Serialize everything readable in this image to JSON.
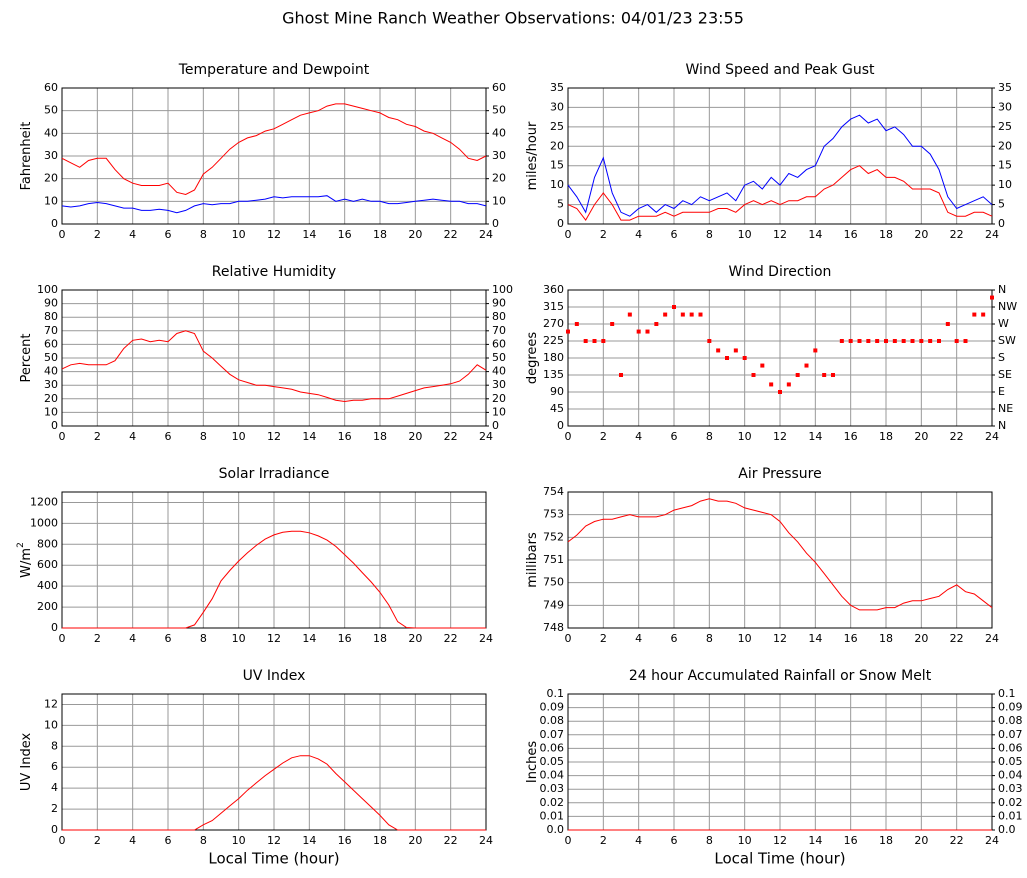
{
  "title": "Ghost Mine Ranch Weather Observations: 04/01/23 23:55",
  "chart_data": [
    {
      "type": "line",
      "title": "Temperature and Dewpoint",
      "ylabel": "Fahrenheit",
      "x": [
        0,
        0.5,
        1,
        1.5,
        2,
        2.5,
        3,
        3.5,
        4,
        4.5,
        5,
        5.5,
        6,
        6.5,
        7,
        7.5,
        8,
        8.5,
        9,
        9.5,
        10,
        10.5,
        11,
        11.5,
        12,
        12.5,
        13,
        13.5,
        14,
        14.5,
        15,
        15.5,
        16,
        16.5,
        17,
        17.5,
        18,
        18.5,
        19,
        19.5,
        20,
        20.5,
        21,
        21.5,
        22,
        22.5,
        23,
        23.5,
        24
      ],
      "series": [
        {
          "color": "#ff0000",
          "values": [
            29,
            27,
            25,
            28,
            29,
            29,
            24,
            20,
            18,
            17,
            17,
            17,
            18,
            14,
            13,
            15,
            22,
            25,
            29,
            33,
            36,
            38,
            39,
            41,
            42,
            44,
            46,
            48,
            49,
            50,
            52,
            53,
            53,
            52,
            51,
            50,
            49,
            47,
            46,
            44,
            43,
            41,
            40,
            38,
            36,
            33,
            29,
            28,
            30
          ]
        },
        {
          "color": "#0000ff",
          "values": [
            8,
            7.5,
            8,
            9,
            9.5,
            9,
            8,
            7,
            7,
            6,
            6,
            6.5,
            6,
            5,
            6,
            8,
            9,
            8.5,
            9,
            9,
            10,
            10,
            10.5,
            11,
            12,
            11.5,
            12,
            12,
            12,
            12,
            12.5,
            10,
            11,
            10,
            11,
            10,
            10,
            9,
            9,
            9.5,
            10,
            10.5,
            11,
            10.5,
            10,
            10,
            9,
            9,
            8
          ]
        }
      ],
      "xlim": [
        0,
        24
      ],
      "xticks": [
        0,
        2,
        4,
        6,
        8,
        10,
        12,
        14,
        16,
        18,
        20,
        22,
        24
      ],
      "ylim": [
        0,
        60
      ],
      "yticks": [
        0,
        10,
        20,
        30,
        40,
        50,
        60
      ],
      "y2ticks": [
        0,
        10,
        20,
        30,
        40,
        50,
        60
      ],
      "grid": true
    },
    {
      "type": "line",
      "title": "Wind Speed and Peak Gust",
      "ylabel": "miles/hour",
      "x": [
        0,
        0.5,
        1,
        1.5,
        2,
        2.5,
        3,
        3.5,
        4,
        4.5,
        5,
        5.5,
        6,
        6.5,
        7,
        7.5,
        8,
        8.5,
        9,
        9.5,
        10,
        10.5,
        11,
        11.5,
        12,
        12.5,
        13,
        13.5,
        14,
        14.5,
        15,
        15.5,
        16,
        16.5,
        17,
        17.5,
        18,
        18.5,
        19,
        19.5,
        20,
        20.5,
        21,
        21.5,
        22,
        22.5,
        23,
        23.5,
        24
      ],
      "series": [
        {
          "color": "#0000ff",
          "values": [
            10,
            7,
            3,
            12,
            17,
            8,
            3,
            2,
            4,
            5,
            3,
            5,
            4,
            6,
            5,
            7,
            6,
            7,
            8,
            6,
            10,
            11,
            9,
            12,
            10,
            13,
            12,
            14,
            15,
            20,
            22,
            25,
            27,
            28,
            26,
            27,
            24,
            25,
            23,
            20,
            20,
            18,
            14,
            7,
            4,
            5,
            6,
            7,
            5
          ]
        },
        {
          "color": "#ff0000",
          "values": [
            5,
            4,
            1,
            5,
            8,
            5,
            1,
            1,
            2,
            2,
            2,
            3,
            2,
            3,
            3,
            3,
            3,
            4,
            4,
            3,
            5,
            6,
            5,
            6,
            5,
            6,
            6,
            7,
            7,
            9,
            10,
            12,
            14,
            15,
            13,
            14,
            12,
            12,
            11,
            9,
            9,
            9,
            8,
            3,
            2,
            2,
            3,
            3,
            2
          ]
        }
      ],
      "xlim": [
        0,
        24
      ],
      "xticks": [
        0,
        2,
        4,
        6,
        8,
        10,
        12,
        14,
        16,
        18,
        20,
        22,
        24
      ],
      "ylim": [
        0,
        35
      ],
      "yticks": [
        0,
        5,
        10,
        15,
        20,
        25,
        30,
        35
      ],
      "y2ticks": [
        0,
        5,
        10,
        15,
        20,
        25,
        30,
        35
      ],
      "grid": true
    },
    {
      "type": "line",
      "title": "Relative Humidity",
      "ylabel": "Percent",
      "x": [
        0,
        0.5,
        1,
        1.5,
        2,
        2.5,
        3,
        3.5,
        4,
        4.5,
        5,
        5.5,
        6,
        6.5,
        7,
        7.5,
        8,
        8.5,
        9,
        9.5,
        10,
        10.5,
        11,
        11.5,
        12,
        12.5,
        13,
        13.5,
        14,
        14.5,
        15,
        15.5,
        16,
        16.5,
        17,
        17.5,
        18,
        18.5,
        19,
        19.5,
        20,
        20.5,
        21,
        21.5,
        22,
        22.5,
        23,
        23.5,
        24
      ],
      "series": [
        {
          "color": "#ff0000",
          "values": [
            42,
            45,
            46,
            45,
            45,
            45,
            48,
            57,
            63,
            64,
            62,
            63,
            62,
            68,
            70,
            68,
            55,
            50,
            44,
            38,
            34,
            32,
            30,
            30,
            29,
            28,
            27,
            25,
            24,
            23,
            21,
            19,
            18,
            19,
            19,
            20,
            20,
            20,
            22,
            24,
            26,
            28,
            29,
            30,
            31,
            33,
            38,
            45,
            41
          ]
        }
      ],
      "xlim": [
        0,
        24
      ],
      "xticks": [
        0,
        2,
        4,
        6,
        8,
        10,
        12,
        14,
        16,
        18,
        20,
        22,
        24
      ],
      "ylim": [
        0,
        100
      ],
      "yticks": [
        0,
        10,
        20,
        30,
        40,
        50,
        60,
        70,
        80,
        90,
        100
      ],
      "y2ticks": [
        0,
        10,
        20,
        30,
        40,
        50,
        60,
        70,
        80,
        90,
        100
      ],
      "grid": true
    },
    {
      "type": "scatter",
      "title": "Wind Direction",
      "ylabel": "degrees",
      "x": [
        0,
        0.5,
        1,
        1.5,
        2,
        2.5,
        3,
        3.5,
        4,
        4.5,
        5,
        5.5,
        6,
        6.5,
        7,
        7.5,
        8,
        8.5,
        9,
        9.5,
        10,
        10.5,
        11,
        11.5,
        12,
        12.5,
        13,
        13.5,
        14,
        14.5,
        15,
        15.5,
        16,
        16.5,
        17,
        17.5,
        18,
        18.5,
        19,
        19.5,
        20,
        20.5,
        21,
        21.5,
        22,
        22.5,
        23,
        23.5,
        24
      ],
      "series": [
        {
          "color": "#ff0000",
          "values": [
            250,
            270,
            225,
            225,
            225,
            270,
            135,
            295,
            250,
            250,
            270,
            295,
            315,
            295,
            295,
            295,
            225,
            200,
            180,
            200,
            180,
            135,
            160,
            110,
            90,
            110,
            135,
            160,
            200,
            135,
            135,
            225,
            225,
            225,
            225,
            225,
            225,
            225,
            225,
            225,
            225,
            225,
            225,
            270,
            225,
            225,
            295,
            295,
            340
          ]
        }
      ],
      "xlim": [
        0,
        24
      ],
      "xticks": [
        0,
        2,
        4,
        6,
        8,
        10,
        12,
        14,
        16,
        18,
        20,
        22,
        24
      ],
      "ylim": [
        0,
        360
      ],
      "yticks": [
        0,
        45,
        90,
        135,
        180,
        225,
        270,
        315,
        360
      ],
      "y2ticks": [
        {
          "value": 0,
          "label": "N"
        },
        {
          "value": 45,
          "label": "NE"
        },
        {
          "value": 90,
          "label": "E"
        },
        {
          "value": 135,
          "label": "SE"
        },
        {
          "value": 180,
          "label": "S"
        },
        {
          "value": 225,
          "label": "SW"
        },
        {
          "value": 270,
          "label": "W"
        },
        {
          "value": 315,
          "label": "NW"
        },
        {
          "value": 360,
          "label": "N"
        }
      ],
      "grid": true
    },
    {
      "type": "line",
      "title": "Solar Irradiance",
      "ylabel": "W/m",
      "ylabel_sup": "2",
      "x": [
        0,
        0.5,
        1,
        1.5,
        2,
        2.5,
        3,
        3.5,
        4,
        4.5,
        5,
        5.5,
        6,
        6.5,
        7,
        7.5,
        8,
        8.5,
        9,
        9.5,
        10,
        10.5,
        11,
        11.5,
        12,
        12.5,
        13,
        13.5,
        14,
        14.5,
        15,
        15.5,
        16,
        16.5,
        17,
        17.5,
        18,
        18.5,
        19,
        19.5,
        20,
        20.5,
        21,
        21.5,
        22,
        22.5,
        23,
        23.5,
        24
      ],
      "series": [
        {
          "color": "#ff0000",
          "values": [
            0,
            0,
            0,
            0,
            0,
            0,
            0,
            0,
            0,
            0,
            0,
            0,
            0,
            0,
            0,
            30,
            150,
            280,
            450,
            550,
            640,
            720,
            790,
            850,
            890,
            915,
            925,
            925,
            910,
            880,
            840,
            780,
            700,
            620,
            530,
            440,
            340,
            220,
            60,
            5,
            0,
            0,
            0,
            0,
            0,
            0,
            0,
            0,
            0
          ]
        }
      ],
      "xlim": [
        0,
        24
      ],
      "xticks": [
        0,
        2,
        4,
        6,
        8,
        10,
        12,
        14,
        16,
        18,
        20,
        22,
        24
      ],
      "ylim": [
        0,
        1300
      ],
      "yticks": [
        0,
        200,
        400,
        600,
        800,
        1000,
        1200
      ],
      "grid": true
    },
    {
      "type": "line",
      "title": "Air Pressure",
      "ylabel": "millibars",
      "x": [
        0,
        0.5,
        1,
        1.5,
        2,
        2.5,
        3,
        3.5,
        4,
        4.5,
        5,
        5.5,
        6,
        6.5,
        7,
        7.5,
        8,
        8.5,
        9,
        9.5,
        10,
        10.5,
        11,
        11.5,
        12,
        12.5,
        13,
        13.5,
        14,
        14.5,
        15,
        15.5,
        16,
        16.5,
        17,
        17.5,
        18,
        18.5,
        19,
        19.5,
        20,
        20.5,
        21,
        21.5,
        22,
        22.5,
        23,
        23.5,
        24
      ],
      "series": [
        {
          "color": "#ff0000",
          "values": [
            751.8,
            752.1,
            752.5,
            752.7,
            752.8,
            752.8,
            752.9,
            753.0,
            752.9,
            752.9,
            752.9,
            753.0,
            753.2,
            753.3,
            753.4,
            753.6,
            753.7,
            753.6,
            753.6,
            753.5,
            753.3,
            753.2,
            753.1,
            753.0,
            752.7,
            752.2,
            751.8,
            751.3,
            750.9,
            750.4,
            749.9,
            749.4,
            749.0,
            748.8,
            748.8,
            748.8,
            748.9,
            748.9,
            749.1,
            749.2,
            749.2,
            749.3,
            749.4,
            749.7,
            749.9,
            749.6,
            749.5,
            749.2,
            748.9
          ]
        }
      ],
      "xlim": [
        0,
        24
      ],
      "xticks": [
        0,
        2,
        4,
        6,
        8,
        10,
        12,
        14,
        16,
        18,
        20,
        22,
        24
      ],
      "ylim": [
        748,
        754
      ],
      "yticks": [
        748,
        749,
        750,
        751,
        752,
        753,
        754
      ],
      "grid": true
    },
    {
      "type": "line",
      "title": "UV Index",
      "ylabel": "UV Index",
      "xlabel": "Local Time (hour)",
      "x": [
        0,
        0.5,
        1,
        1.5,
        2,
        2.5,
        3,
        3.5,
        4,
        4.5,
        5,
        5.5,
        6,
        6.5,
        7,
        7.5,
        8,
        8.5,
        9,
        9.5,
        10,
        10.5,
        11,
        11.5,
        12,
        12.5,
        13,
        13.5,
        14,
        14.5,
        15,
        15.5,
        16,
        16.5,
        17,
        17.5,
        18,
        18.5,
        19,
        19.5,
        20,
        20.5,
        21,
        21.5,
        22,
        22.5,
        23,
        23.5,
        24
      ],
      "series": [
        {
          "color": "#ff0000",
          "values": [
            0,
            0,
            0,
            0,
            0,
            0,
            0,
            0,
            0,
            0,
            0,
            0,
            0,
            0,
            0,
            0,
            0.5,
            0.9,
            1.6,
            2.3,
            3.0,
            3.8,
            4.5,
            5.2,
            5.8,
            6.4,
            6.9,
            7.1,
            7.1,
            6.8,
            6.3,
            5.4,
            4.6,
            3.8,
            3.0,
            2.2,
            1.4,
            0.5,
            0,
            0,
            0,
            0,
            0,
            0,
            0,
            0,
            0,
            0,
            0
          ]
        }
      ],
      "xlim": [
        0,
        24
      ],
      "xticks": [
        0,
        2,
        4,
        6,
        8,
        10,
        12,
        14,
        16,
        18,
        20,
        22,
        24
      ],
      "ylim": [
        0,
        13
      ],
      "yticks": [
        0,
        2,
        4,
        6,
        8,
        10,
        12
      ],
      "grid": true
    },
    {
      "type": "line",
      "title": "24 hour Accumulated Rainfall or Snow Melt",
      "ylabel": "Inches",
      "xlabel": "Local Time (hour)",
      "x": [
        0,
        24
      ],
      "series": [
        {
          "color": "#ff0000",
          "values": [
            0,
            0
          ]
        }
      ],
      "xlim": [
        0,
        24
      ],
      "xticks": [
        0,
        2,
        4,
        6,
        8,
        10,
        12,
        14,
        16,
        18,
        20,
        22,
        24
      ],
      "ylim": [
        0,
        0.1
      ],
      "yticks": [
        {
          "value": 0,
          "label": "0.0"
        },
        0.01,
        0.02,
        0.03,
        0.04,
        0.05,
        0.06,
        0.07,
        0.08,
        0.09,
        0.1
      ],
      "y2ticks": [
        {
          "value": 0,
          "label": "0.0"
        },
        0.01,
        0.02,
        0.03,
        0.04,
        0.05,
        0.06,
        0.07,
        0.08,
        0.09,
        0.1
      ],
      "grid": true
    }
  ]
}
